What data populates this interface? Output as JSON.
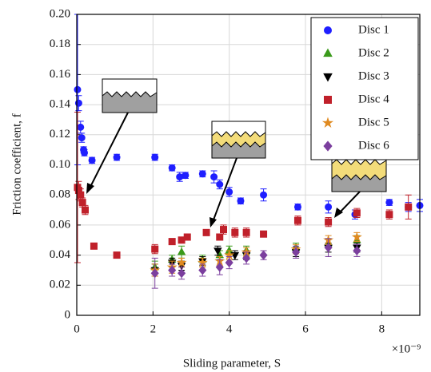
{
  "chart_data": {
    "type": "scatter",
    "x_label": "Sliding parameter, S",
    "x_scale_label": "×10⁻⁹",
    "y_label": "Friction coefficient, f",
    "xlim": [
      0,
      9
    ],
    "ylim": [
      0,
      0.2
    ],
    "xticks": [
      0,
      2,
      4,
      6,
      8
    ],
    "yticks": [
      0,
      0.02,
      0.04,
      0.06,
      0.08,
      {
        "value": 0.1,
        "label": "0.10"
      },
      0.12,
      0.14,
      0.16,
      0.18,
      {
        "value": 0.2,
        "label": "0.20"
      }
    ],
    "grid": true,
    "legend": "upper right",
    "series": [
      {
        "name": "Disc 1",
        "color": "#1f1fff",
        "marker": "circle",
        "x": [
          0.02,
          0.05,
          0.1,
          0.13,
          0.18,
          0.2,
          0.4,
          1.05,
          2.05,
          2.5,
          2.7,
          2.85,
          3.3,
          3.6,
          3.75,
          4.0,
          4.3,
          4.9,
          5.8,
          6.6,
          7.3,
          8.2,
          8.7,
          9.0
        ],
        "values": [
          0.15,
          0.141,
          0.125,
          0.118,
          0.11,
          0.108,
          0.103,
          0.105,
          0.105,
          0.098,
          0.092,
          0.093,
          0.094,
          0.092,
          0.087,
          0.082,
          0.076,
          0.08,
          0.072,
          0.072,
          0.067,
          0.075,
          0.072,
          0.073
        ],
        "errors": [
          0.05,
          0.005,
          0.004,
          0.003,
          0.002,
          0.002,
          0.002,
          0.002,
          0.002,
          0.002,
          0.003,
          0.002,
          0.002,
          0.004,
          0.003,
          0.003,
          0.002,
          0.004,
          0.002,
          0.004,
          0.003,
          0.002,
          0.003,
          0.004
        ]
      },
      {
        "name": "Disc 2",
        "color": "#3a9a1a",
        "marker": "triangle-up",
        "x": [
          2.05,
          2.5,
          2.75,
          3.3,
          3.75,
          4.0,
          4.45,
          5.75,
          6.6,
          7.35
        ],
        "values": [
          0.032,
          0.037,
          0.042,
          0.037,
          0.04,
          0.043,
          0.043,
          0.045,
          0.048,
          0.05
        ],
        "errors": [
          0.004,
          0.003,
          0.004,
          0.003,
          0.003,
          0.003,
          0.003,
          0.003,
          0.003,
          0.003
        ]
      },
      {
        "name": "Disc 3",
        "color": "#000000",
        "marker": "triangle-down",
        "x": [
          2.05,
          2.5,
          2.75,
          3.3,
          3.7,
          4.15,
          4.45,
          5.75,
          6.6,
          7.35
        ],
        "values": [
          0.03,
          0.035,
          0.033,
          0.036,
          0.043,
          0.04,
          0.04,
          0.042,
          0.045,
          0.045
        ],
        "errors": [
          0.004,
          0.003,
          0.003,
          0.003,
          0.003,
          0.003,
          0.003,
          0.003,
          0.003,
          0.003
        ]
      },
      {
        "name": "Disc 4",
        "color": "#c0202a",
        "marker": "square",
        "x": [
          0.02,
          0.05,
          0.1,
          0.15,
          0.22,
          0.45,
          1.05,
          2.05,
          2.5,
          2.75,
          2.9,
          3.4,
          3.75,
          3.85,
          4.15,
          4.45,
          4.9,
          5.8,
          6.6,
          7.35,
          8.2,
          8.7
        ],
        "values": [
          0.085,
          0.083,
          0.08,
          0.075,
          0.07,
          0.046,
          0.04,
          0.044,
          0.049,
          0.05,
          0.052,
          0.055,
          0.052,
          0.057,
          0.055,
          0.055,
          0.054,
          0.063,
          0.062,
          0.068,
          0.067,
          0.072
        ],
        "errors": [
          0.05,
          0.006,
          0.004,
          0.003,
          0.003,
          0.002,
          0.002,
          0.003,
          0.002,
          0.002,
          0.002,
          0.002,
          0.002,
          0.003,
          0.003,
          0.003,
          0.002,
          0.003,
          0.003,
          0.003,
          0.003,
          0.008
        ]
      },
      {
        "name": "Disc 5",
        "color": "#e08a20",
        "marker": "star",
        "x": [
          2.05,
          2.5,
          2.75,
          3.3,
          3.75,
          4.0,
          4.45,
          5.75,
          6.6,
          7.35
        ],
        "values": [
          0.03,
          0.032,
          0.035,
          0.035,
          0.036,
          0.04,
          0.042,
          0.044,
          0.05,
          0.052
        ],
        "errors": [
          0.004,
          0.004,
          0.003,
          0.003,
          0.003,
          0.003,
          0.003,
          0.003,
          0.003,
          0.003
        ]
      },
      {
        "name": "Disc 6",
        "color": "#7b3f9e",
        "marker": "diamond",
        "x": [
          2.05,
          2.5,
          2.75,
          3.3,
          3.75,
          4.0,
          4.45,
          4.9,
          5.75,
          6.6,
          7.35
        ],
        "values": [
          0.028,
          0.03,
          0.028,
          0.03,
          0.032,
          0.035,
          0.038,
          0.04,
          0.042,
          0.045,
          0.043
        ],
        "errors": [
          0.01,
          0.004,
          0.004,
          0.004,
          0.005,
          0.004,
          0.004,
          0.003,
          0.004,
          0.006,
          0.004
        ]
      }
    ]
  }
}
